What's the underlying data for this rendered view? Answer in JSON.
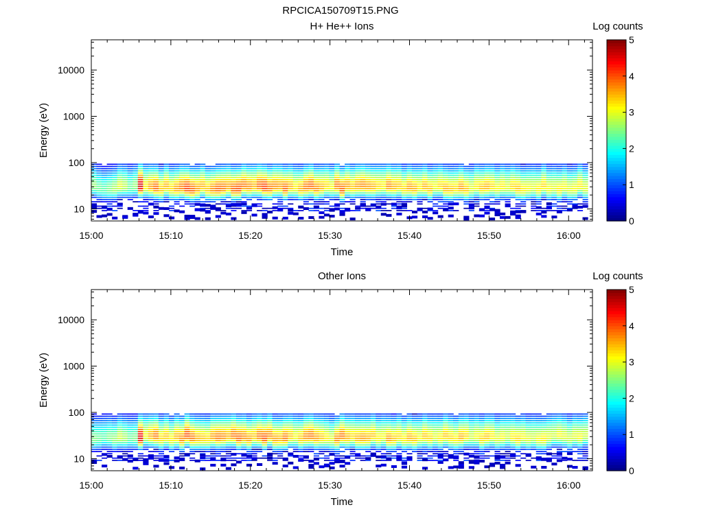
{
  "figure_title": "RPCICA150709T15.PNG",
  "chart_data": [
    {
      "type": "heatmap",
      "title": "H+ He++ Ions",
      "xlabel": "Time",
      "ylabel": "Energy (eV)",
      "x_start": "15:00",
      "x_end": "16:03",
      "x_ticks": [
        "15:00",
        "15:10",
        "15:20",
        "15:30",
        "15:40",
        "15:50",
        "16:00"
      ],
      "y_scale": "log",
      "ylim": [
        5.5,
        45000
      ],
      "y_ticks": [
        10,
        100,
        1000,
        10000
      ],
      "colorbar": {
        "label": "Log counts",
        "range": [
          0,
          5
        ],
        "ticks": [
          "0",
          "1",
          "2",
          "3",
          "4",
          "5"
        ],
        "colormap": "jet"
      },
      "bins_per_column": "energy rows ~10-90 eV, counts peak near 30 eV",
      "column_peaks": [
        2.6,
        2.4,
        2.3,
        2.5,
        2.7,
        3.0,
        2.8,
        2.4,
        2.6,
        4.6,
        3.2,
        3.6,
        3.9,
        3.4,
        3.5,
        3.3,
        3.6,
        3.8,
        4.1,
        3.9,
        3.6,
        3.5,
        3.4,
        3.7,
        3.9,
        3.8,
        3.6,
        3.9,
        4.0,
        3.8,
        3.7,
        3.5,
        3.9,
        4.1,
        3.8,
        3.7,
        3.6,
        3.9,
        3.5,
        3.2,
        3.5,
        3.8,
        3.9,
        3.7,
        3.5,
        3.3,
        3.1,
        3.8,
        3.9,
        3.6,
        3.4,
        3.6,
        3.7,
        3.6,
        3.5,
        3.3,
        3.2,
        3.7,
        3.5,
        3.4,
        3.3,
        3.6,
        3.5,
        3.2,
        3.5,
        3.4,
        3.1,
        3.3,
        3.5,
        3.4,
        3.3,
        3.6,
        3.4,
        3.0,
        3.2,
        3.4,
        3.5,
        3.3,
        3.1,
        3.2,
        3.0,
        3.3,
        3.4,
        3.2,
        3.1,
        3.0,
        3.2,
        3.3,
        3.1,
        3.0,
        3.2,
        3.1,
        3.0,
        3.1,
        3.2,
        3.0
      ]
    },
    {
      "type": "heatmap",
      "title": "Other Ions",
      "xlabel": "Time",
      "ylabel": "Energy (eV)",
      "x_start": "15:00",
      "x_end": "16:03",
      "x_ticks": [
        "15:00",
        "15:10",
        "15:20",
        "15:30",
        "15:40",
        "15:50",
        "16:00"
      ],
      "y_scale": "log",
      "ylim": [
        5.5,
        45000
      ],
      "y_ticks": [
        10,
        100,
        1000,
        10000
      ],
      "colorbar": {
        "label": "Log counts",
        "range": [
          0,
          5
        ],
        "ticks": [
          "0",
          "1",
          "2",
          "3",
          "4",
          "5"
        ],
        "colormap": "jet"
      },
      "column_peaks": [
        2.5,
        2.4,
        2.3,
        2.5,
        2.6,
        2.9,
        2.7,
        2.4,
        2.5,
        4.5,
        3.1,
        3.5,
        3.8,
        3.3,
        3.4,
        3.2,
        3.5,
        3.7,
        4.0,
        3.8,
        3.5,
        3.4,
        3.3,
        3.6,
        3.8,
        3.7,
        3.5,
        3.8,
        3.9,
        3.7,
        3.6,
        3.4,
        3.8,
        4.0,
        3.7,
        3.6,
        3.5,
        3.8,
        3.4,
        3.1,
        3.4,
        3.7,
        3.8,
        3.6,
        3.4,
        3.2,
        3.0,
        3.7,
        3.8,
        3.5,
        3.3,
        3.5,
        3.6,
        3.5,
        3.4,
        3.2,
        3.1,
        3.6,
        3.4,
        3.3,
        3.2,
        3.5,
        3.4,
        3.1,
        3.4,
        3.3,
        3.0,
        3.2,
        3.4,
        3.3,
        3.2,
        3.5,
        3.3,
        2.9,
        3.1,
        3.3,
        3.4,
        3.2,
        3.0,
        3.1,
        2.9,
        3.2,
        3.3,
        3.1,
        3.0,
        2.9,
        3.1,
        3.2,
        3.0,
        2.9,
        3.1,
        3.0,
        2.9,
        3.0,
        3.1,
        2.9
      ]
    }
  ]
}
